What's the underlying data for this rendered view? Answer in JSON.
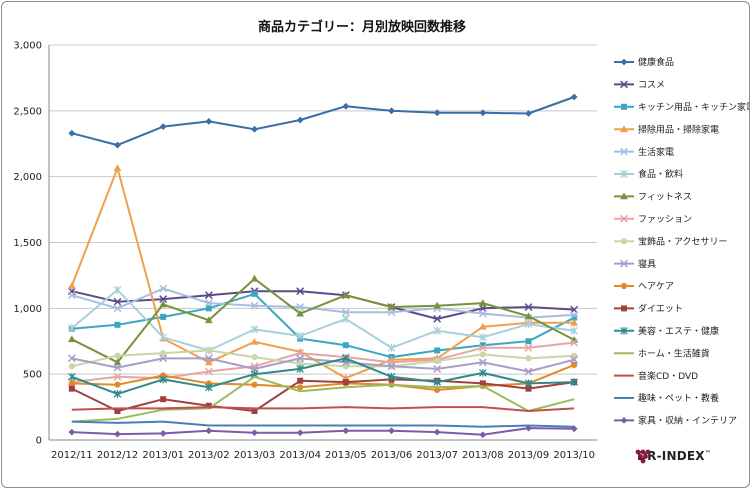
{
  "chart_data": {
    "type": "line",
    "title": "商品カテゴリー：月別放映回数推移",
    "ylim": [
      0,
      3000
    ],
    "yticks": [
      0,
      500,
      1000,
      1500,
      2000,
      2500,
      3000
    ],
    "ytick_labels": [
      "0",
      "500",
      "1,000",
      "1,500",
      "2,000",
      "2,500",
      "3,000"
    ],
    "categories": [
      "2012/11",
      "2012/12",
      "2013/01",
      "2013/02",
      "2013/03",
      "2013/04",
      "2013/05",
      "2013/06",
      "2013/07",
      "2013/08",
      "2013/09",
      "2013/10"
    ],
    "grid": "horizontal",
    "legend_position": "right",
    "series": [
      {
        "name": "健康食品",
        "color": "#3a6ea5",
        "marker": "diamond",
        "values": [
          2330,
          2240,
          2380,
          2420,
          2360,
          2430,
          2535,
          2500,
          2485,
          2485,
          2480,
          2605
        ]
      },
      {
        "name": "コスメ",
        "color": "#5c4a8a",
        "marker": "x",
        "values": [
          1130,
          1050,
          1070,
          1100,
          1130,
          1130,
          1100,
          1010,
          920,
          1000,
          1010,
          990
        ]
      },
      {
        "name": "キッチン用品・キッチン家電",
        "color": "#3aa6c4",
        "marker": "square",
        "values": [
          845,
          875,
          935,
          1000,
          1110,
          770,
          720,
          630,
          680,
          720,
          750,
          930
        ]
      },
      {
        "name": "掃除用品・掃除家電",
        "color": "#f0a04b",
        "marker": "triangle",
        "values": [
          1170,
          2065,
          770,
          590,
          745,
          670,
          470,
          610,
          620,
          860,
          890,
          890
        ]
      },
      {
        "name": "生活家電",
        "color": "#a8bede",
        "marker": "x",
        "values": [
          1100,
          1000,
          1150,
          1040,
          1020,
          1010,
          970,
          970,
          1000,
          960,
          930,
          950
        ]
      },
      {
        "name": "食品・飲料",
        "color": "#a8d0d8",
        "marker": "star",
        "values": [
          850,
          1140,
          780,
          680,
          840,
          790,
          920,
          700,
          830,
          780,
          880,
          830
        ]
      },
      {
        "name": "フィットネス",
        "color": "#77933c",
        "marker": "triangle",
        "values": [
          765,
          590,
          1030,
          910,
          1225,
          960,
          1100,
          1010,
          1020,
          1040,
          940,
          760
        ]
      },
      {
        "name": "ファッション",
        "color": "#e6a4a4",
        "marker": "x",
        "values": [
          440,
          480,
          470,
          520,
          560,
          660,
          630,
          590,
          610,
          700,
          700,
          740
        ]
      },
      {
        "name": "宝飾品・アクセサリー",
        "color": "#c8d6a8",
        "marker": "circle",
        "values": [
          560,
          640,
          660,
          680,
          630,
          580,
          560,
          560,
          600,
          650,
          620,
          640
        ]
      },
      {
        "name": "寝具",
        "color": "#a89cc8",
        "marker": "x",
        "values": [
          620,
          550,
          620,
          620,
          540,
          620,
          590,
          560,
          540,
          590,
          520,
          610
        ]
      },
      {
        "name": "ヘアケア",
        "color": "#e08a2a",
        "marker": "circle",
        "values": [
          430,
          420,
          490,
          430,
          420,
          400,
          430,
          420,
          380,
          410,
          430,
          570
        ]
      },
      {
        "name": "ダイエット",
        "color": "#a04040",
        "marker": "square",
        "values": [
          390,
          220,
          310,
          260,
          220,
          450,
          440,
          460,
          450,
          430,
          390,
          440
        ]
      },
      {
        "name": "美容・エステ・健康",
        "color": "#2f8a8a",
        "marker": "star",
        "values": [
          480,
          350,
          460,
          400,
          500,
          540,
          620,
          480,
          440,
          510,
          430,
          440
        ]
      },
      {
        "name": "ホーム・生活雑貨",
        "color": "#9bbb59",
        "marker": "none",
        "values": [
          140,
          160,
          230,
          240,
          480,
          370,
          400,
          420,
          400,
          410,
          220,
          310
        ]
      },
      {
        "name": "音楽CD・DVD",
        "color": "#c0504d",
        "marker": "none",
        "values": [
          230,
          240,
          240,
          250,
          240,
          240,
          250,
          240,
          250,
          250,
          220,
          240
        ]
      },
      {
        "name": "趣味・ペット・教養",
        "color": "#4a7ebb",
        "marker": "none",
        "values": [
          140,
          130,
          140,
          110,
          110,
          110,
          110,
          110,
          110,
          100,
          110,
          100
        ]
      },
      {
        "name": "家具・収納・インテリア",
        "color": "#7a5ca8",
        "marker": "diamond",
        "values": [
          60,
          45,
          50,
          70,
          55,
          55,
          70,
          70,
          60,
          40,
          90,
          85
        ]
      }
    ]
  },
  "brand": {
    "name": "DR-INDEX",
    "mark": "™"
  }
}
